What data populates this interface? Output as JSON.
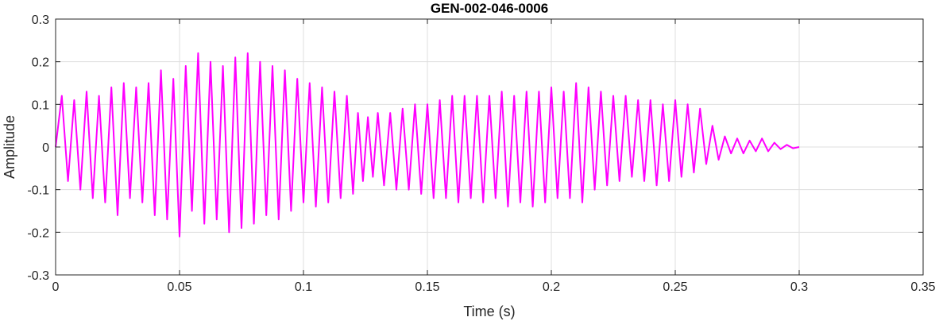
{
  "chart_data": {
    "type": "line",
    "title": "GEN-002-046-0006",
    "xlabel": "Time (s)",
    "ylabel": "Amplitude",
    "xlim": [
      0,
      0.35
    ],
    "ylim": [
      -0.3,
      0.3
    ],
    "xticks": [
      0,
      0.05,
      0.1,
      0.15,
      0.2,
      0.25,
      0.3,
      0.35
    ],
    "xtick_labels": [
      "0",
      "0.05",
      "0.1",
      "0.15",
      "0.2",
      "0.25",
      "0.3",
      "0.35"
    ],
    "yticks": [
      -0.3,
      -0.2,
      -0.1,
      0,
      0.1,
      0.2,
      0.3
    ],
    "ytick_labels": [
      "-0.3",
      "-0.2",
      "-0.1",
      "0",
      "0.1",
      "0.2",
      "0.3"
    ],
    "grid": true,
    "line_color": "#ff00ff",
    "series": [
      {
        "x": [
          0.0,
          0.0025,
          0.005,
          0.0075,
          0.01,
          0.0125,
          0.015,
          0.0175,
          0.02,
          0.0225,
          0.025,
          0.0275,
          0.03,
          0.0325,
          0.035,
          0.0375,
          0.04,
          0.0425,
          0.045,
          0.0475,
          0.05,
          0.0525,
          0.055,
          0.0575,
          0.06,
          0.0625,
          0.065,
          0.0675,
          0.07,
          0.0725,
          0.075,
          0.0775,
          0.08,
          0.0825,
          0.085,
          0.0875,
          0.09,
          0.0925,
          0.095,
          0.0975,
          0.1,
          0.1025,
          0.105,
          0.1075,
          0.11,
          0.1125,
          0.115,
          0.1175,
          0.12,
          0.122,
          0.124,
          0.126,
          0.128,
          0.13,
          0.1325,
          0.135,
          0.1375,
          0.14,
          0.1425,
          0.145,
          0.1475,
          0.15,
          0.1525,
          0.155,
          0.1575,
          0.16,
          0.1625,
          0.165,
          0.1675,
          0.17,
          0.1725,
          0.175,
          0.1775,
          0.18,
          0.1825,
          0.185,
          0.1875,
          0.19,
          0.1925,
          0.195,
          0.1975,
          0.2,
          0.2025,
          0.205,
          0.2075,
          0.21,
          0.2125,
          0.215,
          0.2175,
          0.22,
          0.2225,
          0.225,
          0.2275,
          0.23,
          0.2325,
          0.235,
          0.2375,
          0.24,
          0.2425,
          0.245,
          0.2475,
          0.25,
          0.2525,
          0.255,
          0.2575,
          0.26,
          0.2625,
          0.265,
          0.2675,
          0.27,
          0.2725,
          0.275,
          0.2775,
          0.28,
          0.2825,
          0.285,
          0.2875,
          0.29,
          0.2925,
          0.295,
          0.2975,
          0.3
        ],
        "values": [
          0.0,
          0.12,
          -0.08,
          0.11,
          -0.1,
          0.13,
          -0.12,
          0.12,
          -0.13,
          0.14,
          -0.16,
          0.15,
          -0.12,
          0.14,
          -0.13,
          0.15,
          -0.16,
          0.18,
          -0.17,
          0.16,
          -0.21,
          0.19,
          -0.15,
          0.22,
          -0.18,
          0.2,
          -0.17,
          0.19,
          -0.2,
          0.21,
          -0.19,
          0.22,
          -0.18,
          0.2,
          -0.16,
          0.19,
          -0.17,
          0.18,
          -0.15,
          0.16,
          -0.13,
          0.15,
          -0.14,
          0.14,
          -0.13,
          0.13,
          -0.12,
          0.12,
          -0.11,
          0.08,
          -0.08,
          0.07,
          -0.07,
          0.08,
          -0.09,
          0.08,
          -0.1,
          0.09,
          -0.1,
          0.1,
          -0.11,
          0.1,
          -0.12,
          0.11,
          -0.12,
          0.12,
          -0.13,
          0.12,
          -0.12,
          0.12,
          -0.13,
          0.12,
          -0.12,
          0.13,
          -0.14,
          0.12,
          -0.13,
          0.13,
          -0.14,
          0.13,
          -0.13,
          0.14,
          -0.12,
          0.13,
          -0.12,
          0.15,
          -0.13,
          0.14,
          -0.1,
          0.13,
          -0.09,
          0.12,
          -0.08,
          0.12,
          -0.07,
          0.11,
          -0.08,
          0.11,
          -0.09,
          0.1,
          -0.08,
          0.11,
          -0.07,
          0.1,
          -0.06,
          0.09,
          -0.04,
          0.05,
          -0.03,
          0.025,
          -0.015,
          0.02,
          -0.015,
          0.015,
          -0.01,
          0.02,
          -0.01,
          0.01,
          -0.005,
          0.005,
          -0.003,
          0.0
        ]
      }
    ]
  }
}
